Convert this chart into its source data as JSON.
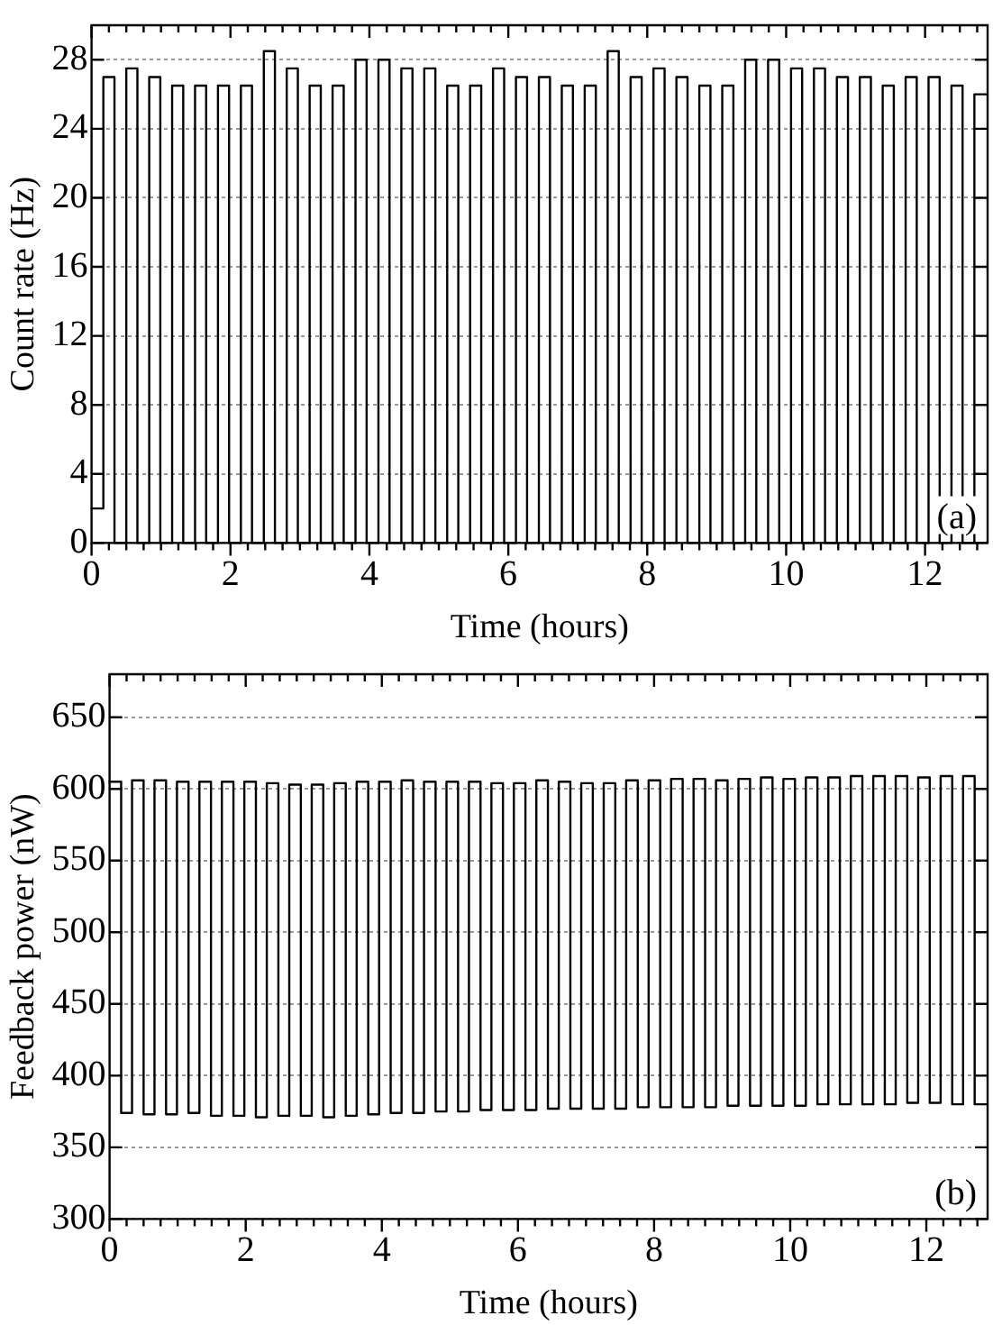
{
  "chart_data": [
    {
      "type": "step",
      "xlabel": "Time (hours)",
      "ylabel": "Count rate (Hz)",
      "annotations": [
        "(a)"
      ],
      "xlim": [
        0,
        12.9
      ],
      "xticks": [
        0,
        2,
        4,
        6,
        8,
        10,
        12
      ],
      "ylim": [
        0,
        30
      ],
      "yticks": [
        0,
        4,
        8,
        12,
        16,
        20,
        24,
        28
      ],
      "grid": "y",
      "x": [
        0,
        0.17,
        0.33,
        0.5,
        0.66,
        0.83,
        0.99,
        1.16,
        1.32,
        1.49,
        1.65,
        1.82,
        1.98,
        2.15,
        2.31,
        2.48,
        2.64,
        2.81,
        2.97,
        3.14,
        3.3,
        3.47,
        3.63,
        3.8,
        3.96,
        4.13,
        4.29,
        4.46,
        4.62,
        4.79,
        4.95,
        5.12,
        5.28,
        5.45,
        5.61,
        5.78,
        5.94,
        6.11,
        6.27,
        6.44,
        6.6,
        6.77,
        6.93,
        7.1,
        7.26,
        7.43,
        7.59,
        7.76,
        7.92,
        8.09,
        8.25,
        8.42,
        8.58,
        8.75,
        8.91,
        9.08,
        9.24,
        9.41,
        9.57,
        9.74,
        9.9,
        10.07,
        10.23,
        10.4,
        10.56,
        10.73,
        10.89,
        11.06,
        11.22,
        11.39,
        11.55,
        11.72,
        11.88,
        12.05,
        12.21,
        12.38,
        12.54,
        12.71,
        12.9
      ],
      "series": [
        {
          "color": "#000000",
          "values": [
            2,
            27,
            0,
            27.5,
            0,
            27,
            0,
            26.5,
            0,
            26.5,
            0,
            26.5,
            0,
            26.5,
            0,
            28.5,
            0,
            27.5,
            0,
            26.5,
            0,
            26.5,
            0,
            28,
            0,
            28,
            0,
            27.5,
            0,
            27.5,
            0,
            26.5,
            0,
            26.5,
            0,
            27.5,
            0,
            27,
            0,
            27,
            0,
            26.5,
            0,
            26.5,
            0,
            28.5,
            0,
            27,
            0,
            27.5,
            0,
            27,
            0,
            26.5,
            0,
            26.5,
            0,
            28,
            0,
            28,
            0,
            27.5,
            0,
            27.5,
            0,
            27,
            0,
            27,
            0,
            26.5,
            0,
            27,
            0,
            27,
            0,
            26.5,
            0,
            26,
            26
          ]
        }
      ]
    },
    {
      "type": "step",
      "xlabel": "Time (hours)",
      "ylabel": "Feedback power (nW)",
      "annotations": [
        "(b)"
      ],
      "xlim": [
        0,
        12.9
      ],
      "xticks": [
        0,
        2,
        4,
        6,
        8,
        10,
        12
      ],
      "ylim": [
        300,
        680
      ],
      "yticks": [
        300,
        350,
        400,
        450,
        500,
        550,
        600,
        650
      ],
      "grid": "y",
      "x": [
        0,
        0.17,
        0.33,
        0.5,
        0.66,
        0.83,
        0.99,
        1.16,
        1.32,
        1.49,
        1.65,
        1.82,
        1.98,
        2.15,
        2.31,
        2.48,
        2.64,
        2.81,
        2.97,
        3.14,
        3.3,
        3.47,
        3.63,
        3.8,
        3.96,
        4.13,
        4.29,
        4.46,
        4.62,
        4.79,
        4.95,
        5.12,
        5.28,
        5.45,
        5.61,
        5.78,
        5.94,
        6.11,
        6.27,
        6.44,
        6.6,
        6.77,
        6.93,
        7.1,
        7.26,
        7.43,
        7.59,
        7.76,
        7.92,
        8.09,
        8.25,
        8.42,
        8.58,
        8.75,
        8.91,
        9.08,
        9.24,
        9.41,
        9.57,
        9.74,
        9.9,
        10.07,
        10.23,
        10.4,
        10.56,
        10.73,
        10.89,
        11.06,
        11.22,
        11.39,
        11.55,
        11.72,
        11.88,
        12.05,
        12.21,
        12.38,
        12.54,
        12.71,
        12.9
      ],
      "series": [
        {
          "color": "#000000",
          "values": [
            605,
            374,
            606,
            373,
            606,
            373,
            605,
            374,
            605,
            372,
            605,
            372,
            605,
            371,
            604,
            372,
            603,
            372,
            603,
            371,
            604,
            372,
            605,
            373,
            605,
            374,
            606,
            374,
            605,
            375,
            605,
            375,
            605,
            376,
            604,
            376,
            604,
            376,
            606,
            377,
            605,
            377,
            604,
            377,
            604,
            377,
            606,
            378,
            606,
            378,
            607,
            378,
            607,
            378,
            606,
            379,
            607,
            379,
            608,
            379,
            607,
            379,
            608,
            380,
            608,
            380,
            609,
            380,
            609,
            380,
            609,
            381,
            608,
            381,
            609,
            380,
            609,
            380,
            380
          ]
        }
      ]
    }
  ]
}
